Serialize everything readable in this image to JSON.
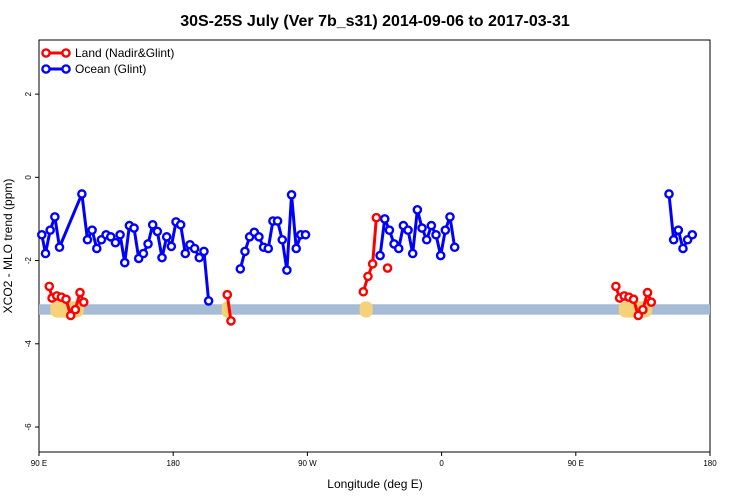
{
  "chart_data": {
    "type": "line",
    "title": "30S-25S July (Ver 7b_s31)   2014-09-06 to 2017-03-31",
    "xlabel": "Longitude (deg E)",
    "ylabel": "XCO2 - MLO trend (ppm)",
    "x_tick_labels": [
      "90 E",
      "180",
      "90 W",
      "0",
      "90 E",
      "180"
    ],
    "y_ticks": [
      2,
      0,
      -2,
      -4,
      -6
    ],
    "ylim": [
      -6.6,
      3.3
    ],
    "grid": false,
    "legend_position": "top-left",
    "series": [
      {
        "name": "Land (Nadir&Glint)",
        "color": "#ff0000",
        "segments": [
          [
            [
              95.5,
              -2.62
            ],
            [
              97,
              -2.9
            ],
            [
              99.5,
              -2.85
            ],
            [
              102,
              -2.88
            ],
            [
              104.5,
              -2.93
            ],
            [
              107,
              -3.32
            ],
            [
              109.5,
              -3.18
            ],
            [
              112,
              -2.77
            ],
            [
              114,
              -3.0
            ]
          ],
          [
            [
              191,
              -2.82
            ],
            [
              193,
              -3.45
            ]
          ],
          [
            [
              264,
              -2.75
            ],
            [
              266.5,
              -2.38
            ],
            [
              269,
              -2.08
            ],
            [
              271,
              -0.97
            ]
          ],
          [
            [
              277,
              -2.18
            ]
          ],
          [
            [
              399.5,
              -2.62
            ],
            [
              401.5,
              -2.9
            ],
            [
              404,
              -2.85
            ],
            [
              406.5,
              -2.88
            ],
            [
              409,
              -2.93
            ],
            [
              411.5,
              -3.32
            ],
            [
              414,
              -3.18
            ],
            [
              416.5,
              -2.77
            ],
            [
              418.5,
              -3.0
            ]
          ]
        ]
      },
      {
        "name": "Ocean (Glint)",
        "color": "#0000ff",
        "segments": [
          [
            [
              91.5,
              -1.38
            ],
            [
              93.5,
              -1.83
            ],
            [
              96,
              -1.27
            ],
            [
              98.5,
              -0.95
            ],
            [
              101,
              -1.68
            ],
            [
              113,
              -0.4
            ],
            [
              116,
              -1.5
            ],
            [
              118.5,
              -1.27
            ],
            [
              121,
              -1.71
            ],
            [
              123.5,
              -1.5
            ],
            [
              126,
              -1.38
            ],
            [
              128.5,
              -1.43
            ],
            [
              131,
              -1.57
            ],
            [
              133.5,
              -1.38
            ],
            [
              136,
              -2.05
            ],
            [
              138.5,
              -1.16
            ],
            [
              141,
              -1.22
            ],
            [
              143.5,
              -1.95
            ],
            [
              146,
              -1.83
            ],
            [
              148.5,
              -1.6
            ],
            [
              151,
              -1.14
            ],
            [
              153.5,
              -1.3
            ],
            [
              156,
              -1.93
            ],
            [
              158.5,
              -1.43
            ],
            [
              161,
              -1.66
            ],
            [
              163.5,
              -1.07
            ],
            [
              166,
              -1.14
            ],
            [
              168.5,
              -1.83
            ],
            [
              171,
              -1.62
            ],
            [
              173.5,
              -1.71
            ],
            [
              176,
              -1.93
            ],
            [
              178.5,
              -1.78
            ],
            [
              181,
              -2.97
            ]
          ],
          [
            [
              198,
              -2.2
            ],
            [
              200.5,
              -1.78
            ],
            [
              203,
              -1.43
            ],
            [
              205.5,
              -1.32
            ],
            [
              208,
              -1.43
            ],
            [
              210.5,
              -1.68
            ],
            [
              213,
              -1.71
            ],
            [
              215.5,
              -1.05
            ],
            [
              218,
              -1.05
            ],
            [
              220.5,
              -1.5
            ],
            [
              223,
              -2.23
            ],
            [
              225.5,
              -0.42
            ],
            [
              228,
              -1.71
            ],
            [
              230.5,
              -1.38
            ],
            [
              233,
              -1.38
            ]
          ],
          [
            [
              273,
              -1.88
            ],
            [
              275.5,
              -1.0
            ],
            [
              278,
              -1.27
            ],
            [
              280.5,
              -1.6
            ],
            [
              283,
              -1.71
            ],
            [
              285.5,
              -1.16
            ],
            [
              288,
              -1.27
            ],
            [
              290.5,
              -1.83
            ],
            [
              293,
              -0.78
            ],
            [
              295.5,
              -1.22
            ],
            [
              298,
              -1.5
            ],
            [
              300.5,
              -1.16
            ],
            [
              303,
              -1.38
            ],
            [
              305.5,
              -1.88
            ],
            [
              308,
              -1.27
            ],
            [
              310.5,
              -0.95
            ],
            [
              313,
              -1.68
            ]
          ],
          [
            [
              428,
              -0.4
            ],
            [
              430.5,
              -1.5
            ],
            [
              433,
              -1.27
            ],
            [
              435.5,
              -1.71
            ],
            [
              438,
              -1.5
            ],
            [
              440.5,
              -1.38
            ]
          ]
        ]
      }
    ],
    "coverage_band": {
      "color": "#a5bbd6",
      "y_range": [
        -3.3,
        -3.05
      ]
    },
    "land_patches": {
      "color": "#f5d27a",
      "x_ranges": [
        [
          96,
          114
        ],
        [
          188,
          193
        ],
        [
          262,
          269
        ],
        [
          401,
          419
        ]
      ]
    }
  }
}
